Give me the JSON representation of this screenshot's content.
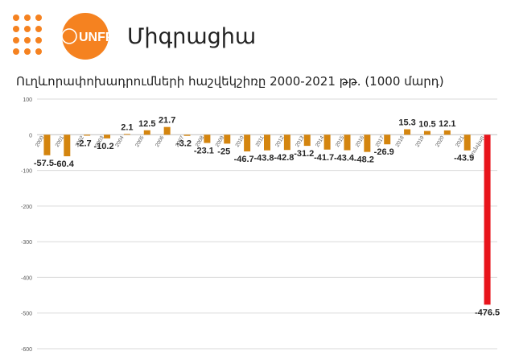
{
  "header": {
    "logo_text": "UNFPA",
    "slide_title": "Միգրացիա"
  },
  "colors": {
    "brand_orange": "#F58220",
    "bar_default": "#D4850F",
    "bar_highlight": "#E8141B",
    "grid": "#d9d9d9"
  },
  "chart_data": {
    "type": "bar",
    "title": "Ուղևորափոխադրումների հաշվեկշիռը 2000-2021 թթ. (1000 մարդ)",
    "categories": [
      "2000",
      "2001",
      "2002",
      "2003",
      "2004",
      "2005",
      "2006",
      "2007",
      "2008",
      "2009",
      "2010",
      "2011",
      "2012",
      "2013",
      "2014",
      "2015",
      "2016",
      "2017",
      "2018",
      "2019",
      "2020",
      "2021",
      "հունվար"
    ],
    "values": [
      -57.5,
      -60.4,
      -2.7,
      -10.2,
      2.1,
      12.5,
      21.7,
      -3.2,
      -23.1,
      -25,
      -46.7,
      -43.8,
      -42.8,
      -31.2,
      -41.7,
      -43.4,
      -48.2,
      -26.9,
      15.3,
      10.5,
      12.1,
      -43.9,
      -476.5
    ],
    "data_labels": [
      "-57.5",
      "-60.4",
      "-2.7",
      "-10.2",
      "2.1",
      "12.5",
      "21.7",
      "-3.2",
      "-23.1",
      "-25",
      "-46.7",
      "-43.8",
      "-42.8",
      "-31.2",
      "-41.7",
      "-43.4",
      "-48.2",
      "-26.9",
      "15.3",
      "10.5",
      "12.1",
      "-43.9",
      "-476.5"
    ],
    "highlight_index": 22,
    "ylim": [
      -600,
      100
    ],
    "yticks": [
      100,
      0,
      -100,
      -200,
      -300,
      -400,
      -500,
      -600
    ],
    "ytick_labels": [
      "100",
      "0",
      "-100",
      "-200",
      "-300",
      "-400",
      "-500",
      "-600"
    ],
    "grid": true,
    "legend": "none"
  }
}
